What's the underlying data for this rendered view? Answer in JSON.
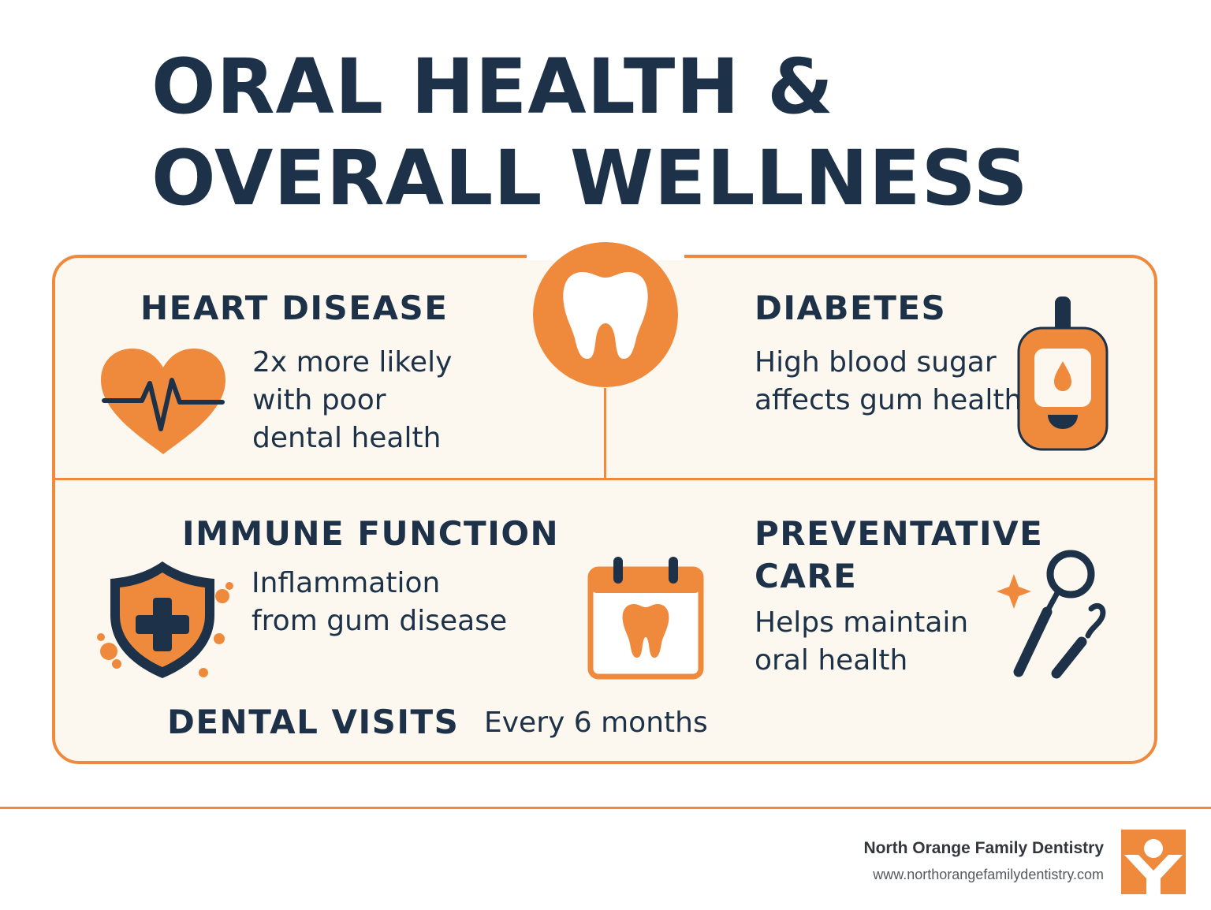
{
  "title": {
    "line1": "ORAL HEALTH &",
    "line2": "OVERALL WELLNESS"
  },
  "sections": {
    "heart": {
      "heading": "HEART DISEASE",
      "lines": [
        "2x more likely",
        "with poor",
        "dental health"
      ],
      "icon": "heart-pulse-icon"
    },
    "diabetes": {
      "heading": "DIABETES",
      "lines": [
        "High blood sugar",
        "affects gum health"
      ],
      "icon": "glucose-meter-icon"
    },
    "immune": {
      "heading": "IMMUNE FUNCTION",
      "lines": [
        "Inflammation",
        "from gum disease"
      ],
      "icon": "shield-cross-icon"
    },
    "preventative": {
      "heading_line1": "PREVENTATIVE",
      "heading_line2": "CARE",
      "lines": [
        "Helps maintain",
        "oral health"
      ],
      "icon": "dental-tools-icon"
    },
    "visits": {
      "heading": "DENTAL VISITS",
      "value": "Every 6 months",
      "icon": "calendar-tooth-icon"
    }
  },
  "center_icon": "tooth-icon",
  "footer": {
    "name": "North Orange Family Dentistry",
    "url": "www.northorangefamilydentistry.com",
    "logo": "person-logo-icon"
  },
  "colors": {
    "navy": "#1d3248",
    "orange": "#ef8a3d",
    "panel": "#fdf8ef"
  }
}
